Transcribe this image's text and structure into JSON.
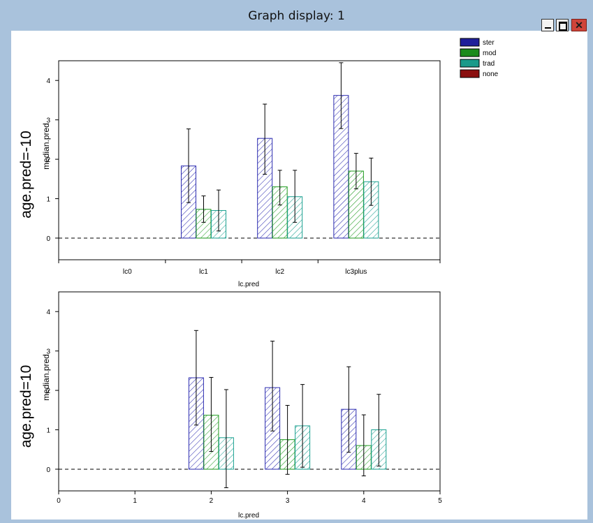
{
  "window": {
    "title": "Graph display: 1",
    "buttons": {
      "minimize": "minimize",
      "maximize": "maximize",
      "close": "✕"
    }
  },
  "legend": [
    {
      "label": "ster",
      "color": "#1f1f9a"
    },
    {
      "label": "mod",
      "color": "#1a8a1a"
    },
    {
      "label": "trad",
      "color": "#1a9a8a"
    },
    {
      "label": "none",
      "color": "#8a0f0f"
    }
  ],
  "colors": {
    "ster": "#2b2bb0",
    "mod": "#1e9a1e",
    "trad": "#1aa090",
    "axis": "#000000"
  },
  "chart_data": [
    {
      "type": "bar",
      "panel_label": "age.pred=-10",
      "xlabel": "lc.pred",
      "ylabel": "median.pred",
      "categories": [
        "lc0",
        "lc1",
        "lc2",
        "lc3plus"
      ],
      "ylim": [
        -0.55,
        4.5
      ],
      "yticks": [
        0,
        1,
        2,
        3,
        4
      ],
      "reference_line": 0,
      "series": [
        {
          "name": "ster",
          "values": [
            null,
            1.83,
            2.53,
            3.62
          ],
          "err_low": [
            null,
            0.9,
            1.62,
            2.78
          ],
          "err_high": [
            null,
            2.77,
            3.4,
            4.45
          ]
        },
        {
          "name": "mod",
          "values": [
            null,
            0.73,
            1.3,
            1.7
          ],
          "err_low": [
            null,
            0.4,
            0.84,
            1.25
          ],
          "err_high": [
            null,
            1.07,
            1.72,
            2.15
          ]
        },
        {
          "name": "trad",
          "values": [
            null,
            0.7,
            1.05,
            1.43
          ],
          "err_low": [
            null,
            0.18,
            0.4,
            0.83
          ],
          "err_high": [
            null,
            1.22,
            1.72,
            2.03
          ]
        }
      ]
    },
    {
      "type": "bar",
      "panel_label": "age.pred=10",
      "xlabel": "lc.pred",
      "ylabel": "median.pred",
      "xticks": [
        "0",
        "1",
        "2",
        "3",
        "4",
        "5"
      ],
      "xlim": [
        0,
        5
      ],
      "ylim": [
        -0.55,
        4.5
      ],
      "yticks": [
        0,
        1,
        2,
        3,
        4
      ],
      "reference_line": 0,
      "group_centers": [
        2,
        3,
        4
      ],
      "series": [
        {
          "name": "ster",
          "values": [
            2.32,
            2.07,
            1.52
          ],
          "err_low": [
            1.12,
            0.97,
            0.43
          ],
          "err_high": [
            3.52,
            3.25,
            2.6
          ]
        },
        {
          "name": "mod",
          "values": [
            1.37,
            0.75,
            0.6
          ],
          "err_low": [
            0.45,
            -0.13,
            -0.17
          ],
          "err_high": [
            2.33,
            1.62,
            1.38
          ]
        },
        {
          "name": "trad",
          "values": [
            0.8,
            1.1,
            1.0
          ],
          "err_low": [
            -0.47,
            0.05,
            0.08
          ],
          "err_high": [
            2.02,
            2.15,
            1.9
          ]
        }
      ]
    }
  ]
}
